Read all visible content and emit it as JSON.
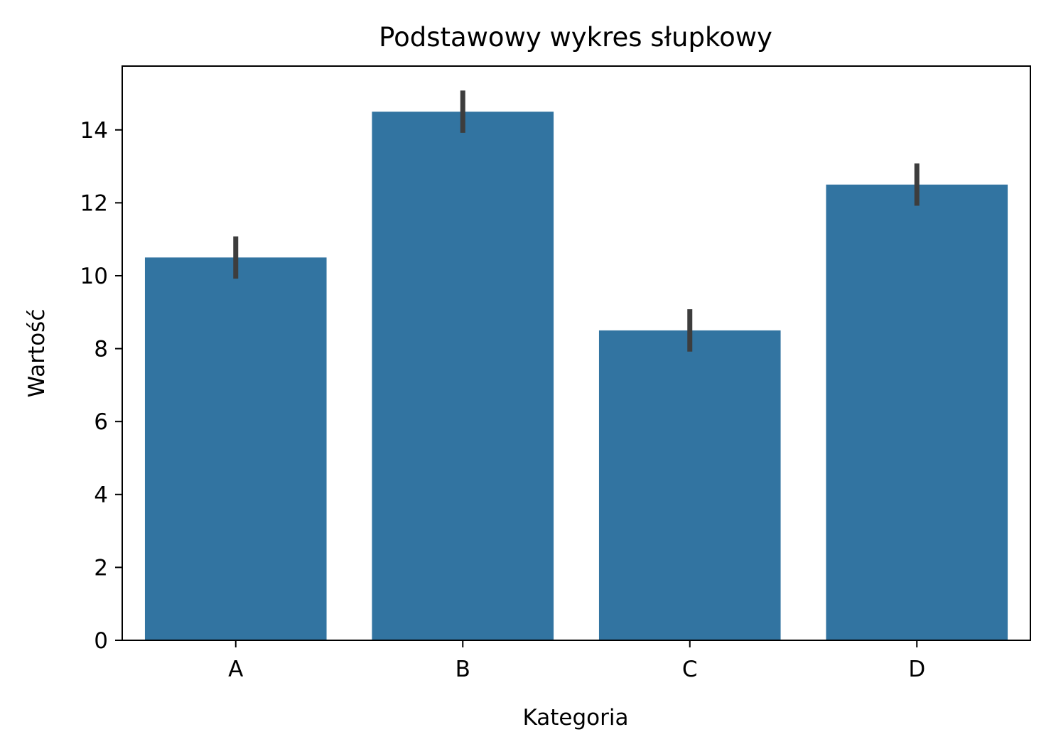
{
  "chart_data": {
    "type": "bar",
    "title": "Podstawowy wykres słupkowy",
    "xlabel": "Kategoria",
    "ylabel": "Wartość",
    "categories": [
      "A",
      "B",
      "C",
      "D"
    ],
    "values": [
      10.5,
      14.5,
      8.5,
      12.5
    ],
    "error_low": [
      9.92,
      13.92,
      7.92,
      11.92
    ],
    "error_high": [
      11.08,
      15.08,
      9.08,
      13.08
    ],
    "ylim": [
      0,
      15.75
    ],
    "yticks": [
      0,
      2,
      4,
      6,
      8,
      10,
      12,
      14
    ],
    "grid": false,
    "legend": "none",
    "colors": {
      "bar": "#3274a1",
      "errorbar": "#3d3d3d",
      "axis": "#000000"
    }
  }
}
